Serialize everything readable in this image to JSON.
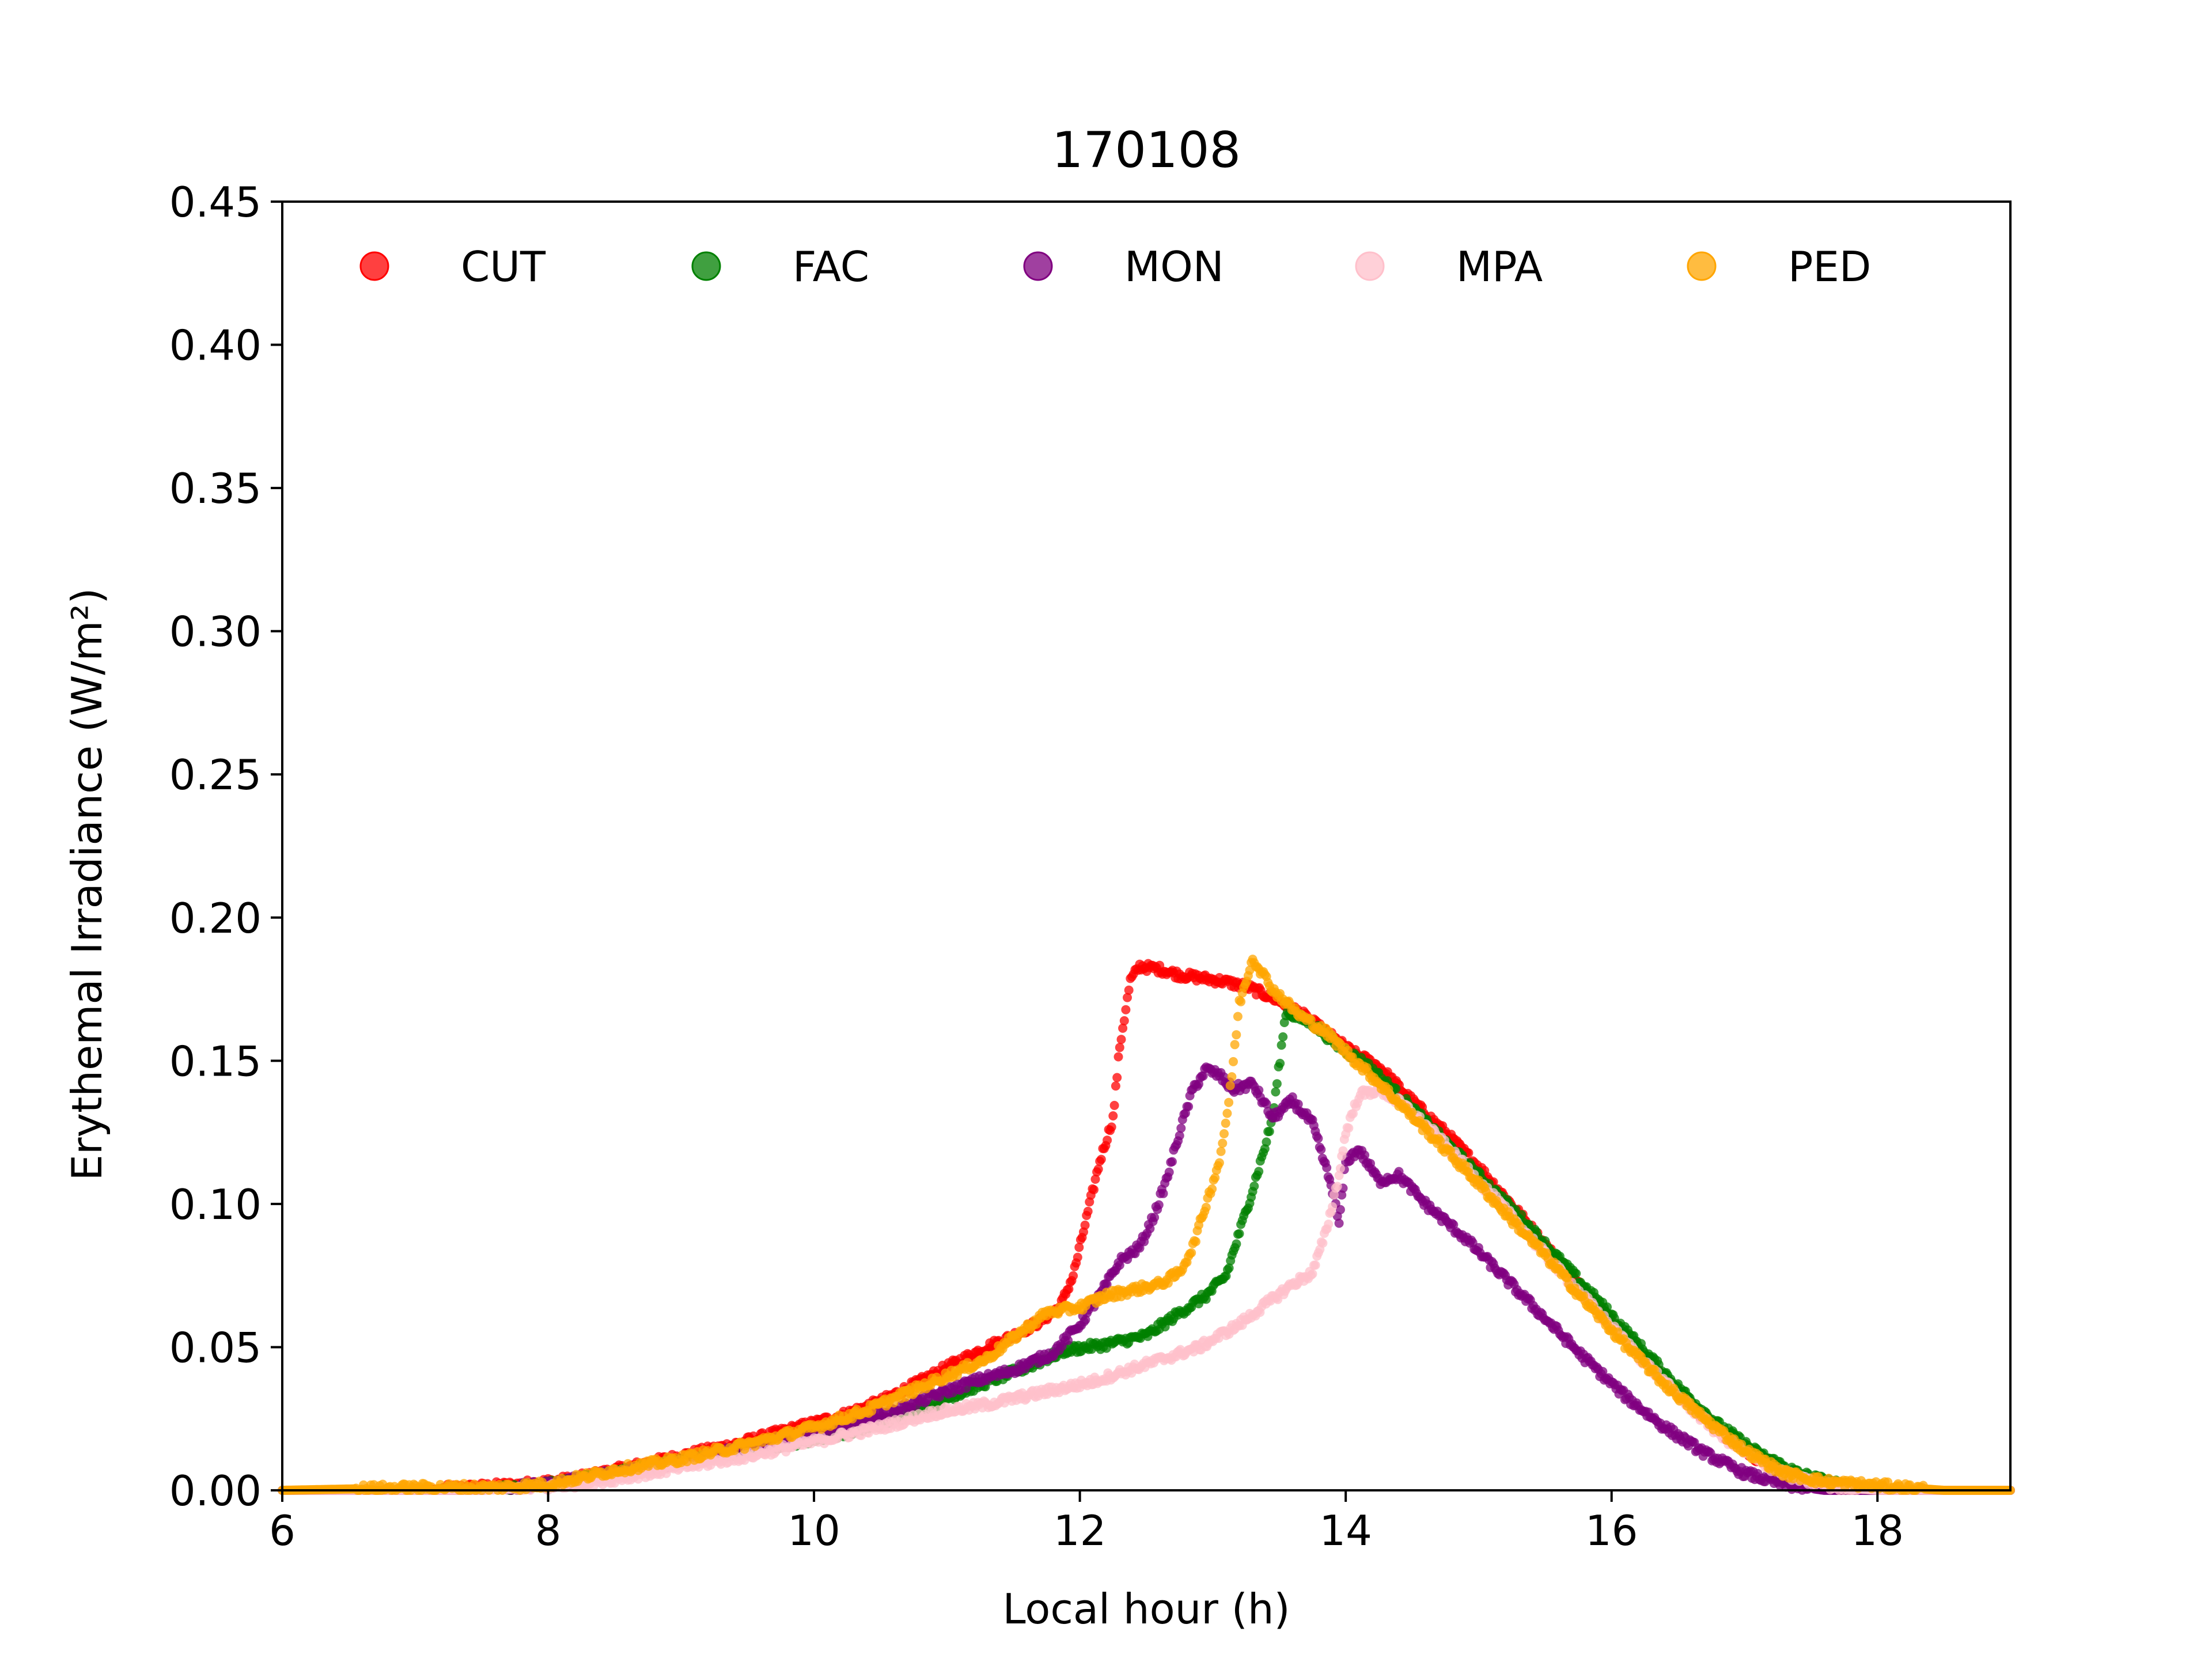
{
  "chart_data": {
    "type": "scatter",
    "title": "170108",
    "xlabel": "Local hour (h)",
    "ylabel": "Erythemal Irradiance (W/m²)",
    "xlim": [
      6,
      19
    ],
    "ylim": [
      0,
      0.45
    ],
    "xticks": [
      6,
      8,
      10,
      12,
      14,
      16,
      18
    ],
    "xtick_labels": [
      "6",
      "8",
      "10",
      "12",
      "14",
      "16",
      "18"
    ],
    "yticks": [
      0,
      0.05,
      0.1,
      0.15,
      0.2,
      0.25,
      0.3,
      0.35,
      0.4,
      0.45
    ],
    "ytick_labels": [
      "0.00",
      "0.05",
      "0.10",
      "0.15",
      "0.20",
      "0.25",
      "0.30",
      "0.35",
      "0.40",
      "0.45"
    ],
    "grid": false,
    "legend": {
      "position": "top",
      "columns": 5
    },
    "series": [
      {
        "name": "CUT",
        "color": "#ff0000",
        "points": [
          [
            6.0,
            0.0
          ],
          [
            7.0,
            0.0
          ],
          [
            7.8,
            0.002
          ],
          [
            8.2,
            0.004
          ],
          [
            8.6,
            0.008
          ],
          [
            9.0,
            0.012
          ],
          [
            9.4,
            0.016
          ],
          [
            9.8,
            0.021
          ],
          [
            10.2,
            0.026
          ],
          [
            10.5,
            0.031
          ],
          [
            10.8,
            0.038
          ],
          [
            11.0,
            0.043
          ],
          [
            11.3,
            0.05
          ],
          [
            11.5,
            0.054
          ],
          [
            11.7,
            0.059
          ],
          [
            11.85,
            0.064
          ],
          [
            11.95,
            0.075
          ],
          [
            12.05,
            0.095
          ],
          [
            12.15,
            0.115
          ],
          [
            12.25,
            0.13
          ],
          [
            12.3,
            0.155
          ],
          [
            12.38,
            0.178
          ],
          [
            12.45,
            0.183
          ],
          [
            12.6,
            0.182
          ],
          [
            12.75,
            0.18
          ],
          [
            12.9,
            0.179
          ],
          [
            13.05,
            0.178
          ],
          [
            13.25,
            0.176
          ],
          [
            13.45,
            0.172
          ],
          [
            13.65,
            0.167
          ],
          [
            13.85,
            0.16
          ],
          [
            14.05,
            0.153
          ],
          [
            14.25,
            0.148
          ],
          [
            14.5,
            0.136
          ],
          [
            14.75,
            0.125
          ],
          [
            15.0,
            0.113
          ],
          [
            15.3,
            0.097
          ],
          [
            15.6,
            0.08
          ],
          [
            15.9,
            0.064
          ],
          [
            16.2,
            0.049
          ],
          [
            16.5,
            0.034
          ],
          [
            16.8,
            0.021
          ],
          [
            17.1,
            0.011
          ],
          [
            17.4,
            0.004
          ],
          [
            17.7,
            0.001
          ],
          [
            18.0,
            0.0
          ],
          [
            19.0,
            0.0
          ]
        ]
      },
      {
        "name": "FAC",
        "color": "#008000",
        "points": [
          [
            6.0,
            0.0
          ],
          [
            7.5,
            0.0
          ],
          [
            8.0,
            0.002
          ],
          [
            8.5,
            0.006
          ],
          [
            9.0,
            0.01
          ],
          [
            9.5,
            0.014
          ],
          [
            10.0,
            0.018
          ],
          [
            10.4,
            0.022
          ],
          [
            10.8,
            0.028
          ],
          [
            11.2,
            0.036
          ],
          [
            11.6,
            0.043
          ],
          [
            11.9,
            0.049
          ],
          [
            12.2,
            0.051
          ],
          [
            12.5,
            0.054
          ],
          [
            12.75,
            0.062
          ],
          [
            12.95,
            0.068
          ],
          [
            13.1,
            0.075
          ],
          [
            13.2,
            0.09
          ],
          [
            13.3,
            0.105
          ],
          [
            13.38,
            0.118
          ],
          [
            13.45,
            0.13
          ],
          [
            13.55,
            0.167
          ],
          [
            13.75,
            0.163
          ],
          [
            13.95,
            0.155
          ],
          [
            14.15,
            0.149
          ],
          [
            14.4,
            0.138
          ],
          [
            14.7,
            0.124
          ],
          [
            15.0,
            0.11
          ],
          [
            15.3,
            0.096
          ],
          [
            15.6,
            0.081
          ],
          [
            15.9,
            0.066
          ],
          [
            16.2,
            0.051
          ],
          [
            16.5,
            0.036
          ],
          [
            16.8,
            0.023
          ],
          [
            17.1,
            0.013
          ],
          [
            17.4,
            0.006
          ],
          [
            17.7,
            0.002
          ],
          [
            18.0,
            0.0
          ],
          [
            19.0,
            0.0
          ]
        ]
      },
      {
        "name": "MON",
        "color": "#800080",
        "points": [
          [
            6.0,
            0.0
          ],
          [
            7.5,
            0.0
          ],
          [
            8.0,
            0.002
          ],
          [
            8.5,
            0.006
          ],
          [
            9.0,
            0.01
          ],
          [
            9.5,
            0.015
          ],
          [
            10.0,
            0.02
          ],
          [
            10.5,
            0.026
          ],
          [
            10.9,
            0.033
          ],
          [
            11.2,
            0.038
          ],
          [
            11.5,
            0.042
          ],
          [
            11.8,
            0.048
          ],
          [
            12.0,
            0.058
          ],
          [
            12.15,
            0.068
          ],
          [
            12.3,
            0.08
          ],
          [
            12.45,
            0.085
          ],
          [
            12.55,
            0.095
          ],
          [
            12.65,
            0.108
          ],
          [
            12.75,
            0.125
          ],
          [
            12.85,
            0.14
          ],
          [
            12.95,
            0.147
          ],
          [
            13.05,
            0.145
          ],
          [
            13.15,
            0.14
          ],
          [
            13.3,
            0.142
          ],
          [
            13.45,
            0.13
          ],
          [
            13.6,
            0.136
          ],
          [
            13.75,
            0.128
          ],
          [
            13.9,
            0.105
          ],
          [
            13.95,
            0.093
          ],
          [
            14.0,
            0.115
          ],
          [
            14.1,
            0.119
          ],
          [
            14.25,
            0.108
          ],
          [
            14.4,
            0.11
          ],
          [
            14.6,
            0.1
          ],
          [
            14.9,
            0.088
          ],
          [
            15.2,
            0.074
          ],
          [
            15.5,
            0.06
          ],
          [
            15.8,
            0.046
          ],
          [
            16.1,
            0.033
          ],
          [
            16.4,
            0.022
          ],
          [
            16.7,
            0.013
          ],
          [
            17.0,
            0.006
          ],
          [
            17.3,
            0.002
          ],
          [
            17.6,
            0.0
          ],
          [
            19.0,
            0.0
          ]
        ]
      },
      {
        "name": "MPA",
        "color": "#ffc0cb",
        "points": [
          [
            6.0,
            0.0
          ],
          [
            7.5,
            0.0
          ],
          [
            8.0,
            0.001
          ],
          [
            8.5,
            0.004
          ],
          [
            9.0,
            0.008
          ],
          [
            9.5,
            0.012
          ],
          [
            10.0,
            0.017
          ],
          [
            10.5,
            0.022
          ],
          [
            10.9,
            0.027
          ],
          [
            11.3,
            0.03
          ],
          [
            11.7,
            0.034
          ],
          [
            12.1,
            0.038
          ],
          [
            12.5,
            0.044
          ],
          [
            12.9,
            0.05
          ],
          [
            13.2,
            0.058
          ],
          [
            13.4,
            0.065
          ],
          [
            13.6,
            0.072
          ],
          [
            13.75,
            0.076
          ],
          [
            13.85,
            0.09
          ],
          [
            13.9,
            0.1
          ],
          [
            13.95,
            0.11
          ],
          [
            14.0,
            0.125
          ],
          [
            14.1,
            0.138
          ],
          [
            14.25,
            0.14
          ],
          [
            14.45,
            0.134
          ],
          [
            14.7,
            0.123
          ],
          [
            15.0,
            0.108
          ],
          [
            15.3,
            0.093
          ],
          [
            15.6,
            0.077
          ],
          [
            15.9,
            0.062
          ],
          [
            16.2,
            0.047
          ],
          [
            16.5,
            0.033
          ],
          [
            16.8,
            0.02
          ],
          [
            17.1,
            0.01
          ],
          [
            17.4,
            0.004
          ],
          [
            17.7,
            0.001
          ],
          [
            18.0,
            0.0
          ],
          [
            19.0,
            0.0
          ]
        ]
      },
      {
        "name": "PED",
        "color": "#ffa500",
        "points": [
          [
            6.0,
            0.0
          ],
          [
            7.1,
            0.001
          ],
          [
            7.6,
            0.001
          ],
          [
            8.0,
            0.002
          ],
          [
            8.5,
            0.007
          ],
          [
            9.0,
            0.011
          ],
          [
            9.5,
            0.016
          ],
          [
            10.0,
            0.022
          ],
          [
            10.4,
            0.028
          ],
          [
            10.7,
            0.034
          ],
          [
            11.0,
            0.04
          ],
          [
            11.3,
            0.046
          ],
          [
            11.55,
            0.055
          ],
          [
            11.75,
            0.062
          ],
          [
            12.0,
            0.064
          ],
          [
            12.2,
            0.068
          ],
          [
            12.4,
            0.07
          ],
          [
            12.6,
            0.072
          ],
          [
            12.75,
            0.076
          ],
          [
            12.85,
            0.085
          ],
          [
            12.95,
            0.1
          ],
          [
            13.05,
            0.115
          ],
          [
            13.12,
            0.135
          ],
          [
            13.2,
            0.17
          ],
          [
            13.3,
            0.186
          ],
          [
            13.45,
            0.175
          ],
          [
            13.65,
            0.166
          ],
          [
            13.85,
            0.16
          ],
          [
            14.05,
            0.151
          ],
          [
            14.3,
            0.14
          ],
          [
            14.6,
            0.126
          ],
          [
            14.9,
            0.112
          ],
          [
            15.2,
            0.097
          ],
          [
            15.5,
            0.082
          ],
          [
            15.8,
            0.066
          ],
          [
            16.1,
            0.051
          ],
          [
            16.4,
            0.037
          ],
          [
            16.7,
            0.025
          ],
          [
            17.0,
            0.014
          ],
          [
            17.3,
            0.006
          ],
          [
            17.6,
            0.003
          ],
          [
            17.9,
            0.002
          ],
          [
            18.2,
            0.001
          ],
          [
            18.5,
            0.0
          ],
          [
            19.0,
            0.0
          ]
        ]
      }
    ]
  }
}
